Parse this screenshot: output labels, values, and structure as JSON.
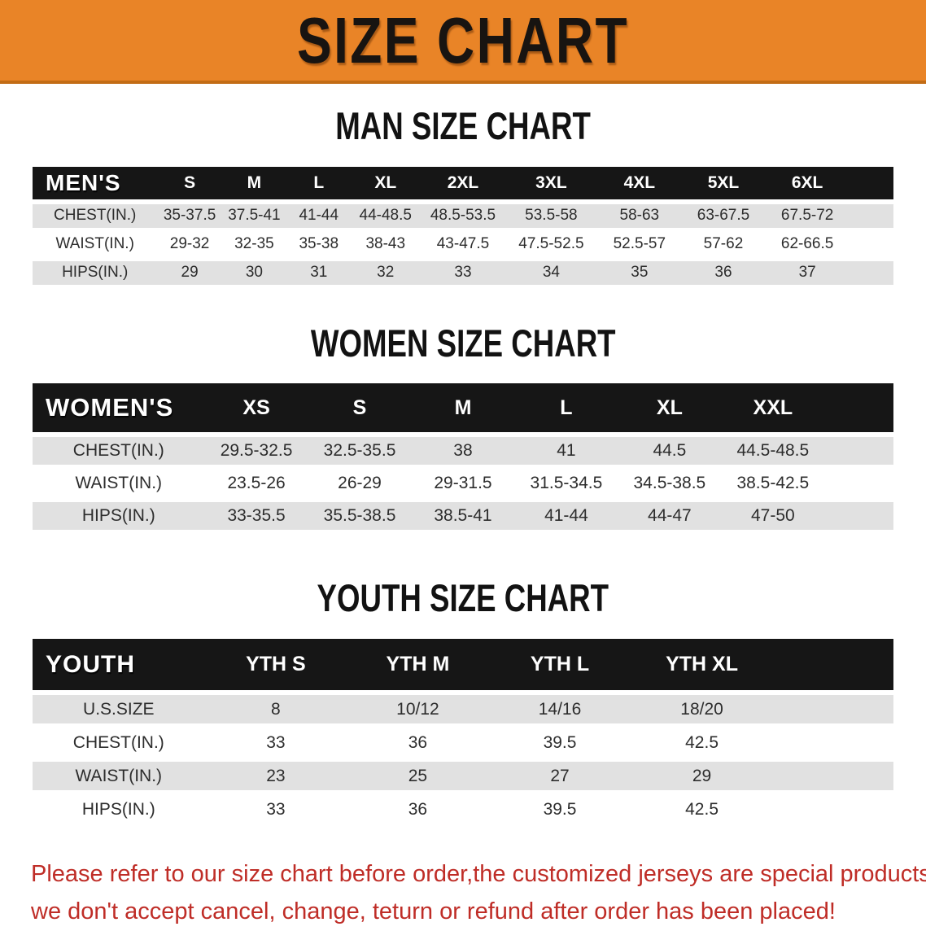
{
  "banner": {
    "title": "SIZE CHART",
    "bg_color": "#e98427"
  },
  "sections": [
    {
      "heading": "MAN SIZE CHART",
      "table": {
        "header_label": "MEN'S",
        "columns": [
          "S",
          "M",
          "L",
          "XL",
          "2XL",
          "3XL",
          "4XL",
          "5XL",
          "6XL"
        ],
        "rows": [
          {
            "label": "CHEST(IN.)",
            "values": [
              "35-37.5",
              "37.5-41",
              "41-44",
              "44-48.5",
              "48.5-53.5",
              "53.5-58",
              "58-63",
              "63-67.5",
              "67.5-72"
            ]
          },
          {
            "label": "WAIST(IN.)",
            "values": [
              "29-32",
              "32-35",
              "35-38",
              "38-43",
              "43-47.5",
              "47.5-52.5",
              "52.5-57",
              "57-62",
              "62-66.5"
            ]
          },
          {
            "label": "HIPS(IN.)",
            "values": [
              "29",
              "30",
              "31",
              "32",
              "33",
              "34",
              "35",
              "36",
              "37"
            ]
          }
        ]
      }
    },
    {
      "heading": "WOMEN SIZE CHART",
      "table": {
        "header_label": "WOMEN'S",
        "columns": [
          "XS",
          "S",
          "M",
          "L",
          "XL",
          "XXL"
        ],
        "rows": [
          {
            "label": "CHEST(IN.)",
            "values": [
              "29.5-32.5",
              "32.5-35.5",
              "38",
              "41",
              "44.5",
              "44.5-48.5"
            ]
          },
          {
            "label": "WAIST(IN.)",
            "values": [
              "23.5-26",
              "26-29",
              "29-31.5",
              "31.5-34.5",
              "34.5-38.5",
              "38.5-42.5"
            ]
          },
          {
            "label": "HIPS(IN.)",
            "values": [
              "33-35.5",
              "35.5-38.5",
              "38.5-41",
              "41-44",
              "44-47",
              "47-50"
            ]
          }
        ]
      }
    },
    {
      "heading": "YOUTH SIZE CHART",
      "table": {
        "header_label": "YOUTH",
        "columns": [
          "YTH S",
          "YTH M",
          "YTH L",
          "YTH XL"
        ],
        "rows": [
          {
            "label": "U.S.SIZE",
            "values": [
              "8",
              "10/12",
              "14/16",
              "18/20"
            ]
          },
          {
            "label": "CHEST(IN.)",
            "values": [
              "33",
              "36",
              "39.5",
              "42.5"
            ]
          },
          {
            "label": "WAIST(IN.)",
            "values": [
              "23",
              "25",
              "27",
              "29"
            ]
          },
          {
            "label": "HIPS(IN.)",
            "values": [
              "33",
              "36",
              "39.5",
              "42.5"
            ]
          }
        ]
      }
    }
  ],
  "disclaimer": {
    "line1": "Please refer to our size chart before order,the customized jerseys are special products,",
    "line2": "we don't accept cancel, change, teturn or refund after order has been placed!",
    "color": "#bf2d27"
  },
  "colors": {
    "header_bar": "#161616",
    "stripe_row": "#e1e1e1",
    "banner_orange": "#e98427"
  }
}
